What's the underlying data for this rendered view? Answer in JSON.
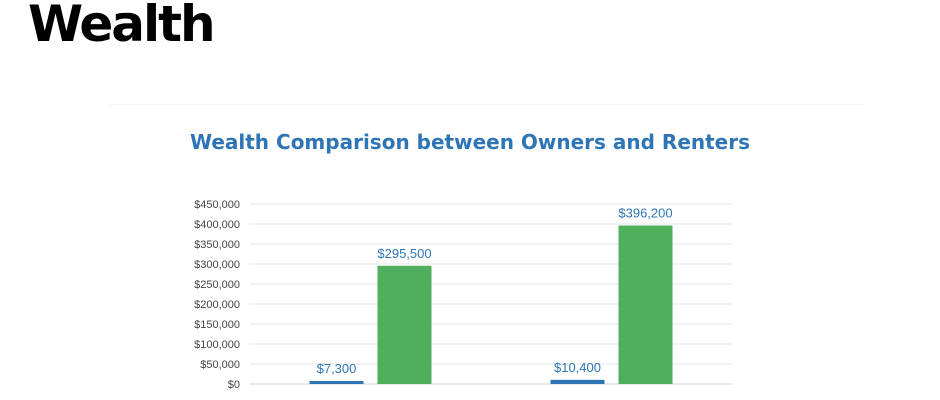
{
  "page": {
    "heading": "Wealth"
  },
  "chart_data": {
    "type": "bar",
    "title": "Wealth Comparison between Owners and Renters",
    "xlabel": "",
    "ylabel": "",
    "ylim": [
      0,
      450000
    ],
    "yticks": [
      0,
      50000,
      100000,
      150000,
      200000,
      250000,
      300000,
      350000,
      400000,
      450000
    ],
    "ytick_labels": [
      "$0",
      "$50,000",
      "$100,000",
      "$150,000",
      "$200,000",
      "$250,000",
      "$300,000",
      "$350,000",
      "$400,000",
      "$450,000"
    ],
    "grid": true,
    "legend": "none",
    "groups": 2,
    "series": [
      {
        "values": [
          7300,
          10400
        ],
        "labels": [
          "$7,300",
          "$10,400"
        ],
        "color": "#2e75b6",
        "label_color": "#2e75b6"
      },
      {
        "values": [
          295500,
          396200
        ],
        "labels": [
          "$295,500",
          "$396,200"
        ],
        "color": "#4faf5c",
        "label_color": "#2e75b6"
      }
    ]
  }
}
